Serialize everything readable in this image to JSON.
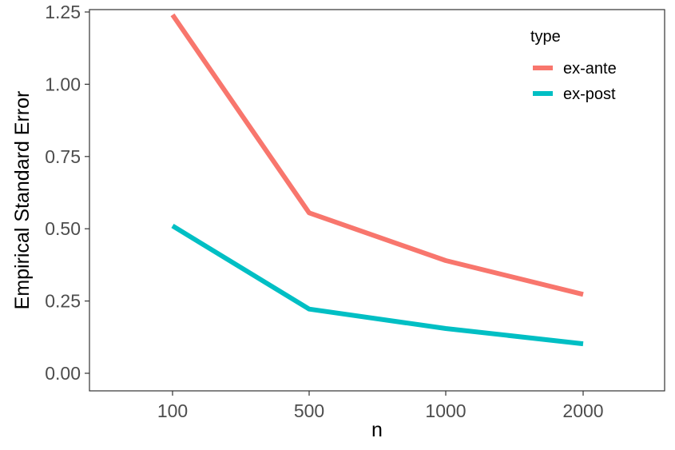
{
  "chart_data": {
    "type": "line",
    "categories": [
      "100",
      "500",
      "1000",
      "2000"
    ],
    "xlabel": "n",
    "ylabel": "Empirical Standard Error",
    "ylim": [
      -0.05,
      1.25
    ],
    "yticks": [
      0.0,
      0.25,
      0.5,
      0.75,
      1.0,
      1.25
    ],
    "ytick_labels": [
      "0.00",
      "0.25",
      "0.50",
      "0.75",
      "1.00",
      "1.25"
    ],
    "grid": false,
    "legend": {
      "title": "type",
      "placement": "top-right inside"
    },
    "series": [
      {
        "name": "ex-ante",
        "color": "#F8766D",
        "values": [
          1.24,
          0.555,
          0.39,
          0.273
        ]
      },
      {
        "name": "ex-post",
        "color": "#00BFC4",
        "values": [
          0.51,
          0.222,
          0.155,
          0.102
        ]
      }
    ]
  }
}
